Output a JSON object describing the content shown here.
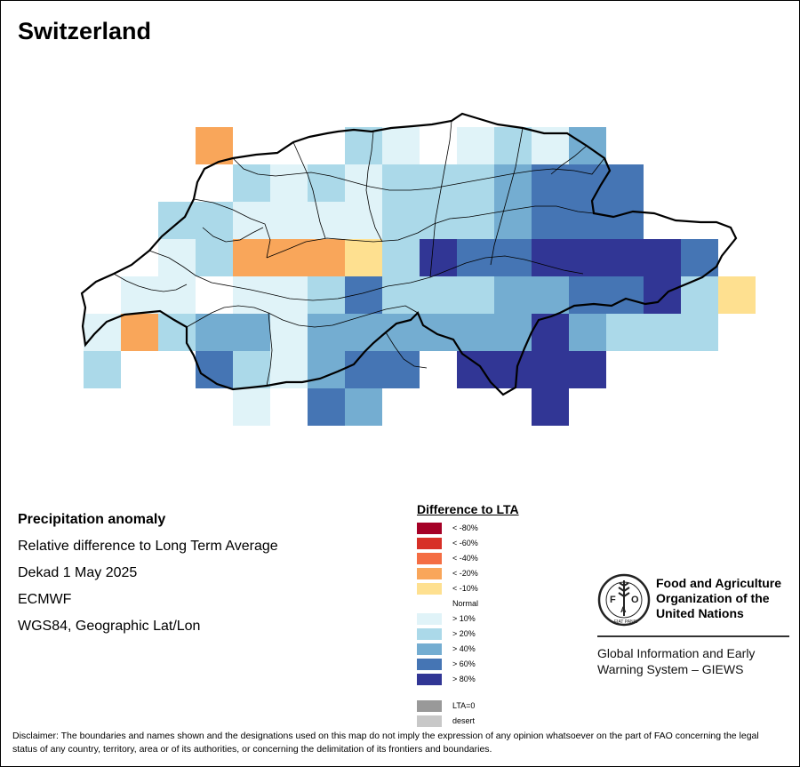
{
  "map": {
    "title": "Switzerland",
    "colors": {
      "border": "#000000",
      "background": "#ffffff"
    },
    "grid_cells": [
      {
        "class": "lt20",
        "row": 0,
        "col": 3
      },
      {
        "class": "gt20",
        "row": 0,
        "col": 7
      },
      {
        "class": "gt10",
        "row": 0,
        "col": 8
      },
      {
        "class": "gt10",
        "row": 0,
        "col": 10
      },
      {
        "class": "gt20",
        "row": 0,
        "col": 11
      },
      {
        "class": "gt10",
        "row": 0,
        "col": 12
      },
      {
        "class": "gt40",
        "row": 0,
        "col": 13
      },
      {
        "class": "gt20",
        "row": 1,
        "col": 4
      },
      {
        "class": "gt10",
        "row": 1,
        "col": 5
      },
      {
        "class": "gt20",
        "row": 1,
        "col": 6
      },
      {
        "class": "gt10",
        "row": 1,
        "col": 7
      },
      {
        "class": "gt20",
        "row": 1,
        "col": 8
      },
      {
        "class": "gt20",
        "row": 1,
        "col": 9
      },
      {
        "class": "gt20",
        "row": 1,
        "col": 10
      },
      {
        "class": "gt40",
        "row": 1,
        "col": 11
      },
      {
        "class": "gt60",
        "row": 1,
        "col": 12
      },
      {
        "class": "gt60",
        "row": 1,
        "col": 13
      },
      {
        "class": "gt60",
        "row": 1,
        "col": 14
      },
      {
        "class": "gt20",
        "row": 2,
        "col": 2
      },
      {
        "class": "gt20",
        "row": 2,
        "col": 3
      },
      {
        "class": "gt10",
        "row": 2,
        "col": 4
      },
      {
        "class": "gt10",
        "row": 2,
        "col": 5
      },
      {
        "class": "gt10",
        "row": 2,
        "col": 6
      },
      {
        "class": "gt10",
        "row": 2,
        "col": 7
      },
      {
        "class": "gt20",
        "row": 2,
        "col": 8
      },
      {
        "class": "gt20",
        "row": 2,
        "col": 9
      },
      {
        "class": "gt20",
        "row": 2,
        "col": 10
      },
      {
        "class": "gt40",
        "row": 2,
        "col": 11
      },
      {
        "class": "gt60",
        "row": 2,
        "col": 12
      },
      {
        "class": "gt60",
        "row": 2,
        "col": 13
      },
      {
        "class": "gt60",
        "row": 2,
        "col": 14
      },
      {
        "class": "gt10",
        "row": 3,
        "col": 2
      },
      {
        "class": "gt20",
        "row": 3,
        "col": 3
      },
      {
        "class": "lt20",
        "row": 3,
        "col": 4
      },
      {
        "class": "lt20",
        "row": 3,
        "col": 5
      },
      {
        "class": "lt20",
        "row": 3,
        "col": 6
      },
      {
        "class": "lt10",
        "row": 3,
        "col": 7
      },
      {
        "class": "gt20",
        "row": 3,
        "col": 8
      },
      {
        "class": "gt80",
        "row": 3,
        "col": 9
      },
      {
        "class": "gt60",
        "row": 3,
        "col": 10
      },
      {
        "class": "gt60",
        "row": 3,
        "col": 11
      },
      {
        "class": "gt80",
        "row": 3,
        "col": 12
      },
      {
        "class": "gt80",
        "row": 3,
        "col": 13
      },
      {
        "class": "gt80",
        "row": 3,
        "col": 14
      },
      {
        "class": "gt80",
        "row": 3,
        "col": 15
      },
      {
        "class": "gt60",
        "row": 3,
        "col": 16
      },
      {
        "class": "gt10",
        "row": 4,
        "col": 1
      },
      {
        "class": "gt10",
        "row": 4,
        "col": 2
      },
      {
        "class": "gt10",
        "row": 4,
        "col": 4
      },
      {
        "class": "gt10",
        "row": 4,
        "col": 5
      },
      {
        "class": "gt20",
        "row": 4,
        "col": 6
      },
      {
        "class": "gt60",
        "row": 4,
        "col": 7
      },
      {
        "class": "gt20",
        "row": 4,
        "col": 8
      },
      {
        "class": "gt20",
        "row": 4,
        "col": 9
      },
      {
        "class": "gt20",
        "row": 4,
        "col": 10
      },
      {
        "class": "gt40",
        "row": 4,
        "col": 11
      },
      {
        "class": "gt40",
        "row": 4,
        "col": 12
      },
      {
        "class": "gt60",
        "row": 4,
        "col": 13
      },
      {
        "class": "gt60",
        "row": 4,
        "col": 14
      },
      {
        "class": "gt80",
        "row": 4,
        "col": 15
      },
      {
        "class": "gt20",
        "row": 4,
        "col": 16
      },
      {
        "class": "lt10",
        "row": 4,
        "col": 17
      },
      {
        "class": "gt10",
        "row": 5,
        "col": 0
      },
      {
        "class": "lt20",
        "row": 5,
        "col": 1
      },
      {
        "class": "gt20",
        "row": 5,
        "col": 2
      },
      {
        "class": "gt40",
        "row": 5,
        "col": 3
      },
      {
        "class": "gt40",
        "row": 5,
        "col": 4
      },
      {
        "class": "gt10",
        "row": 5,
        "col": 5
      },
      {
        "class": "gt40",
        "row": 5,
        "col": 6
      },
      {
        "class": "gt40",
        "row": 5,
        "col": 7
      },
      {
        "class": "gt40",
        "row": 5,
        "col": 8
      },
      {
        "class": "gt40",
        "row": 5,
        "col": 9
      },
      {
        "class": "gt40",
        "row": 5,
        "col": 10
      },
      {
        "class": "gt40",
        "row": 5,
        "col": 11
      },
      {
        "class": "gt80",
        "row": 5,
        "col": 12
      },
      {
        "class": "gt40",
        "row": 5,
        "col": 13
      },
      {
        "class": "gt20",
        "row": 5,
        "col": 14
      },
      {
        "class": "gt20",
        "row": 5,
        "col": 15
      },
      {
        "class": "gt20",
        "row": 5,
        "col": 16
      },
      {
        "class": "gt20",
        "row": 6,
        "col": 0
      },
      {
        "class": "gt60",
        "row": 6,
        "col": 3
      },
      {
        "class": "gt20",
        "row": 6,
        "col": 4
      },
      {
        "class": "gt10",
        "row": 6,
        "col": 5
      },
      {
        "class": "gt40",
        "row": 6,
        "col": 6
      },
      {
        "class": "gt60",
        "row": 6,
        "col": 7
      },
      {
        "class": "gt60",
        "row": 6,
        "col": 8
      },
      {
        "class": "gt80",
        "row": 6,
        "col": 10
      },
      {
        "class": "gt80",
        "row": 6,
        "col": 11
      },
      {
        "class": "gt80",
        "row": 6,
        "col": 12
      },
      {
        "class": "gt80",
        "row": 6,
        "col": 13
      },
      {
        "class": "gt10",
        "row": 7,
        "col": 4
      },
      {
        "class": "gt60",
        "row": 7,
        "col": 6
      },
      {
        "class": "gt40",
        "row": 7,
        "col": 7
      },
      {
        "class": "gt80",
        "row": 7,
        "col": 12
      }
    ]
  },
  "info": {
    "heading": "Precipitation anomaly",
    "line1": "Relative difference to Long Term Average",
    "line2": "Dekad 1 May 2025",
    "line3": "ECMWF",
    "line4": "WGS84, Geographic Lat/Lon"
  },
  "legend": {
    "title": "Difference to LTA",
    "items": [
      {
        "label": "< -80%",
        "color": "#a50026"
      },
      {
        "label": "< -60%",
        "color": "#d73027"
      },
      {
        "label": "< -40%",
        "color": "#f46d43"
      },
      {
        "label": "< -20%",
        "color": "#f9a65a"
      },
      {
        "label": "< -10%",
        "color": "#fee090"
      },
      {
        "label": "Normal",
        "color": "#ffffff"
      },
      {
        "label": "> 10%",
        "color": "#e0f3f8"
      },
      {
        "label": "> 20%",
        "color": "#abd9e9"
      },
      {
        "label": "> 40%",
        "color": "#74add1"
      },
      {
        "label": "> 60%",
        "color": "#4575b4"
      },
      {
        "label": "> 80%",
        "color": "#313695"
      }
    ],
    "extra": [
      {
        "label": "LTA=0",
        "color": "#999999"
      },
      {
        "label": "desert",
        "color": "#c8c8c8"
      }
    ]
  },
  "org": {
    "name_line1": "Food and Agriculture",
    "name_line2": "Organization of the",
    "name_line3": "United Nations",
    "logo_text": "FAO",
    "logo_motto": "FIAT PANIS",
    "system_line1": "Global Information and Early",
    "system_line2": "Warning System – GIEWS"
  },
  "disclaimer": "Disclaimer: The boundaries and names shown and the designations used on this map do not imply the expression of any opinion whatsoever on the part of FAO concerning the legal status of any country, territory, area or of its authorities, or concerning the delimitation of its frontiers and boundaries."
}
